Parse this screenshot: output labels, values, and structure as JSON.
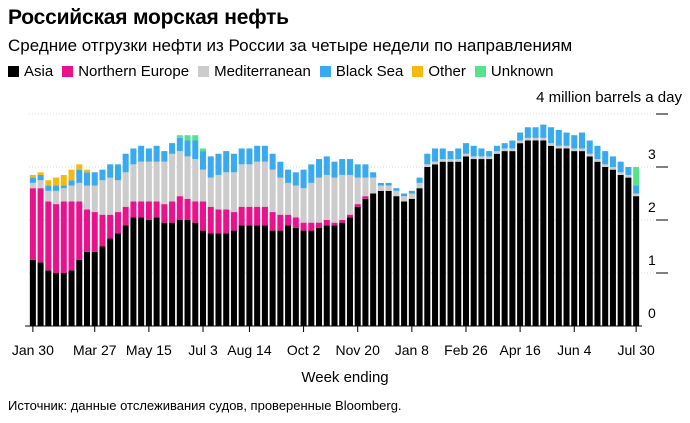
{
  "header": {
    "title": "Российская морская нефть",
    "subtitle": "Средние отгрузки нефти из России за четыре недели по направлениям"
  },
  "legend": [
    {
      "name": "Asia",
      "color": "#000000"
    },
    {
      "name": "Northern Europe",
      "color": "#e8128c"
    },
    {
      "name": "Mediterranean",
      "color": "#cccccc"
    },
    {
      "name": "Black Sea",
      "color": "#3aaaf0"
    },
    {
      "name": "Other",
      "color": "#f5b90f"
    },
    {
      "name": "Unknown",
      "color": "#56e38b"
    }
  ],
  "footer": {
    "source": "Источник: данные отслеживания судов, проверенные Bloomberg."
  },
  "chart_data": {
    "type": "bar",
    "stacked": true,
    "unit_label": "4 million barrels a day",
    "xlabel": "Week ending",
    "ylim": [
      0,
      4
    ],
    "yticks": [
      0,
      1,
      2,
      3,
      4
    ],
    "ytick_labels": [
      "0",
      "1",
      "2",
      "3",
      ""
    ],
    "x_tick_labels": [
      {
        "index": 0,
        "label": "Jan 30"
      },
      {
        "index": 8,
        "label": "Mar 27"
      },
      {
        "index": 15,
        "label": "May 15"
      },
      {
        "index": 22,
        "label": "Jul 3"
      },
      {
        "index": 28,
        "label": "Aug 14"
      },
      {
        "index": 35,
        "label": "Oct 2"
      },
      {
        "index": 42,
        "label": "Nov 20"
      },
      {
        "index": 49,
        "label": "Jan 8"
      },
      {
        "index": 56,
        "label": "Feb 26"
      },
      {
        "index": 63,
        "label": "Apr 16"
      },
      {
        "index": 70,
        "label": "Jun 4"
      },
      {
        "index": 78,
        "label": "Jul 30"
      }
    ],
    "series": [
      {
        "name": "Asia",
        "color": "#000000",
        "values": [
          1.25,
          1.2,
          1.05,
          1.0,
          1.0,
          1.05,
          1.25,
          1.4,
          1.4,
          1.5,
          1.65,
          1.75,
          1.9,
          2.05,
          2.05,
          2.0,
          2.05,
          1.95,
          1.95,
          2.0,
          2.0,
          1.95,
          1.8,
          1.75,
          1.75,
          1.75,
          1.8,
          1.9,
          1.9,
          1.9,
          1.9,
          1.8,
          1.8,
          1.9,
          1.85,
          1.8,
          1.8,
          1.85,
          1.9,
          1.9,
          1.95,
          2.05,
          2.25,
          2.4,
          2.5,
          2.55,
          2.55,
          2.45,
          2.35,
          2.4,
          2.6,
          3.0,
          3.05,
          3.1,
          3.1,
          3.1,
          3.2,
          3.15,
          3.15,
          3.15,
          3.25,
          3.3,
          3.3,
          3.45,
          3.5,
          3.5,
          3.5,
          3.4,
          3.35,
          3.35,
          3.3,
          3.3,
          3.2,
          3.1,
          3.0,
          2.95,
          2.85,
          2.8,
          2.45
        ]
      },
      {
        "name": "Northern Europe",
        "color": "#e8128c",
        "values": [
          1.35,
          1.4,
          1.3,
          1.3,
          1.35,
          1.3,
          1.1,
          0.8,
          0.75,
          0.6,
          0.45,
          0.4,
          0.35,
          0.3,
          0.3,
          0.35,
          0.3,
          0.35,
          0.4,
          0.45,
          0.4,
          0.4,
          0.55,
          0.5,
          0.45,
          0.45,
          0.35,
          0.35,
          0.35,
          0.35,
          0.35,
          0.35,
          0.3,
          0.2,
          0.2,
          0.15,
          0.15,
          0.1,
          0.1,
          0.05,
          0.05,
          0.05,
          0.05,
          0.05,
          0.0,
          0.0,
          0.0,
          0.0,
          0.0,
          0.0,
          0.0,
          0.0,
          0.0,
          0.0,
          0.0,
          0.0,
          0.0,
          0.0,
          0.0,
          0.0,
          0.0,
          0.0,
          0.0,
          0.0,
          0.0,
          0.0,
          0.0,
          0.0,
          0.0,
          0.0,
          0.0,
          0.0,
          0.0,
          0.0,
          0.0,
          0.0,
          0.0,
          0.0,
          0.0
        ]
      },
      {
        "name": "Mediterranean",
        "color": "#cccccc",
        "values": [
          0.1,
          0.15,
          0.2,
          0.25,
          0.25,
          0.3,
          0.35,
          0.45,
          0.5,
          0.65,
          0.7,
          0.6,
          0.65,
          0.7,
          0.75,
          0.75,
          0.75,
          0.8,
          0.9,
          0.85,
          0.8,
          0.8,
          0.6,
          0.55,
          0.65,
          0.7,
          0.75,
          0.8,
          0.8,
          0.85,
          0.85,
          0.8,
          0.7,
          0.6,
          0.6,
          0.65,
          0.75,
          0.85,
          0.85,
          0.85,
          0.85,
          0.75,
          0.5,
          0.35,
          0.3,
          0.1,
          0.1,
          0.1,
          0.1,
          0.1,
          0.1,
          0.05,
          0.05,
          0.05,
          0.05,
          0.05,
          0.05,
          0.05,
          0.05,
          0.05,
          0.05,
          0.05,
          0.05,
          0.05,
          0.05,
          0.05,
          0.05,
          0.05,
          0.05,
          0.05,
          0.05,
          0.05,
          0.05,
          0.05,
          0.05,
          0.05,
          0.05,
          0.05,
          0.05
        ]
      },
      {
        "name": "Black Sea",
        "color": "#3aaaf0",
        "values": [
          0.1,
          0.1,
          0.1,
          0.1,
          0.05,
          0.1,
          0.25,
          0.25,
          0.25,
          0.2,
          0.25,
          0.3,
          0.35,
          0.3,
          0.3,
          0.25,
          0.3,
          0.2,
          0.2,
          0.25,
          0.3,
          0.35,
          0.35,
          0.4,
          0.4,
          0.4,
          0.35,
          0.3,
          0.3,
          0.3,
          0.3,
          0.3,
          0.3,
          0.25,
          0.25,
          0.35,
          0.35,
          0.35,
          0.35,
          0.3,
          0.3,
          0.3,
          0.25,
          0.25,
          0.1,
          0.05,
          0.05,
          0.05,
          0.05,
          0.05,
          0.1,
          0.2,
          0.25,
          0.2,
          0.15,
          0.2,
          0.2,
          0.2,
          0.15,
          0.1,
          0.1,
          0.1,
          0.15,
          0.15,
          0.2,
          0.2,
          0.25,
          0.3,
          0.3,
          0.25,
          0.25,
          0.3,
          0.25,
          0.25,
          0.25,
          0.2,
          0.2,
          0.15,
          0.15
        ]
      },
      {
        "name": "Other",
        "color": "#f5b90f",
        "values": [
          0.05,
          0.05,
          0.1,
          0.15,
          0.2,
          0.2,
          0.1,
          0.05,
          0.0,
          0.0,
          0.0,
          0.0,
          0.0,
          0.0,
          0.0,
          0.0,
          0.0,
          0.0,
          0.0,
          0.0,
          0.0,
          0.0,
          0.0,
          0.0,
          0.0,
          0.0,
          0.0,
          0.0,
          0.0,
          0.0,
          0.0,
          0.0,
          0.0,
          0.0,
          0.0,
          0.0,
          0.0,
          0.0,
          0.0,
          0.0,
          0.0,
          0.0,
          0.0,
          0.0,
          0.0,
          0.0,
          0.0,
          0.0,
          0.0,
          0.0,
          0.0,
          0.0,
          0.0,
          0.0,
          0.0,
          0.0,
          0.0,
          0.0,
          0.0,
          0.0,
          0.0,
          0.0,
          0.0,
          0.0,
          0.0,
          0.0,
          0.0,
          0.0,
          0.0,
          0.0,
          0.0,
          0.0,
          0.0,
          0.0,
          0.0,
          0.0,
          0.0,
          0.0,
          0.0
        ]
      },
      {
        "name": "Unknown",
        "color": "#56e38b",
        "values": [
          0,
          0,
          0,
          0,
          0,
          0,
          0,
          0,
          0,
          0,
          0,
          0,
          0,
          0,
          0,
          0,
          0,
          0,
          0,
          0.05,
          0.1,
          0.1,
          0.05,
          0,
          0,
          0,
          0,
          0,
          0,
          0,
          0,
          0,
          0,
          0,
          0,
          0,
          0,
          0,
          0,
          0,
          0,
          0,
          0,
          0,
          0,
          0,
          0,
          0,
          0,
          0,
          0,
          0,
          0,
          0,
          0,
          0,
          0,
          0,
          0,
          0,
          0,
          0,
          0,
          0,
          0,
          0,
          0,
          0,
          0,
          0,
          0,
          0,
          0,
          0,
          0,
          0,
          0,
          0,
          0.35
        ]
      }
    ]
  }
}
